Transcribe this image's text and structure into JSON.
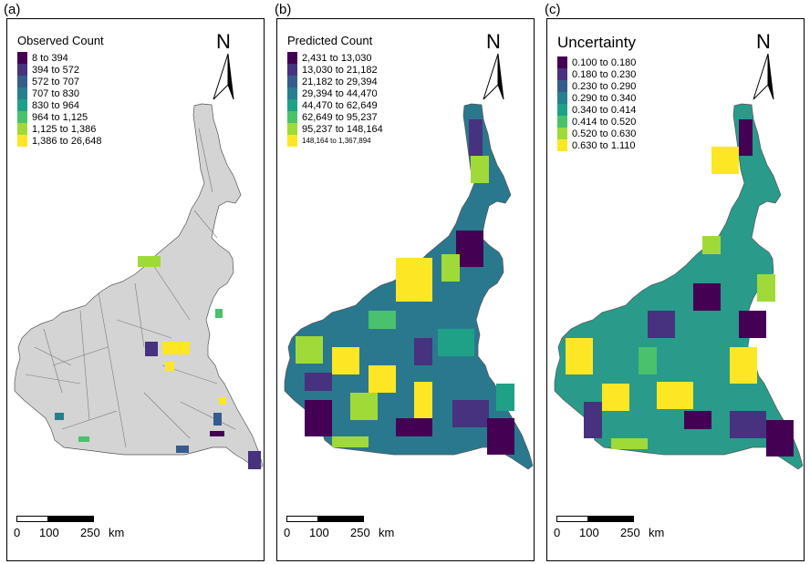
{
  "panels": [
    {
      "letter": "(a)",
      "title": "Observed Count",
      "legend": [
        "8 to 394",
        "394 to 572",
        "572 to 707",
        "707 to 830",
        "830 to 964",
        "964 to 1,125",
        "1,125 to 1,386",
        "1,386 to 26,648"
      ],
      "colors": [
        "#440154",
        "#46327e",
        "#365c8d",
        "#277f8e",
        "#1fa187",
        "#4ac16d",
        "#a0da39",
        "#fde725"
      ],
      "base_fill": "#d4d4d4",
      "north": "N",
      "scale": [
        "0",
        "100",
        "250",
        "km"
      ]
    },
    {
      "letter": "(b)",
      "title": "Predicted Count",
      "legend": [
        "2,431 to 13,030",
        "13,030 to 21,182",
        "21,182 to 29,394",
        "29,394 to 44,470",
        "44,470 to 62,649",
        "62,649 to 95,237",
        "95,237 to 148,164",
        "148,164 to 1,367,894"
      ],
      "colors": [
        "#440154",
        "#46327e",
        "#365c8d",
        "#277f8e",
        "#1fa187",
        "#4ac16d",
        "#a0da39",
        "#fde725"
      ],
      "base_fill": "#2a788e",
      "north": "N",
      "scale": [
        "0",
        "100",
        "250",
        "km"
      ]
    },
    {
      "letter": "(c)",
      "title": "Uncertainty",
      "legend": [
        "0.100 to 0.180",
        "0.180 to 0.230",
        "0.230 to 0.290",
        "0.290 to 0.340",
        "0.340 to 0.414",
        "0.414 to 0.520",
        "0.520 to 0.630",
        "0.630 to 1.110"
      ],
      "colors": [
        "#440154",
        "#46327e",
        "#365c8d",
        "#277f8e",
        "#1fa187",
        "#4ac16d",
        "#a0da39",
        "#fde725"
      ],
      "base_fill": "#2a9a8a",
      "north": "N",
      "scale": [
        "0",
        "100",
        "250",
        "km"
      ]
    }
  ]
}
